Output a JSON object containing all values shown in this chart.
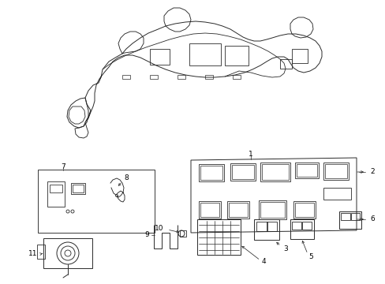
{
  "bg_color": "#ffffff",
  "line_color": "#2a2a2a",
  "lw": 0.65,
  "label_fontsize": 6.5,
  "fig_w": 4.89,
  "fig_h": 3.6,
  "dpi": 100
}
